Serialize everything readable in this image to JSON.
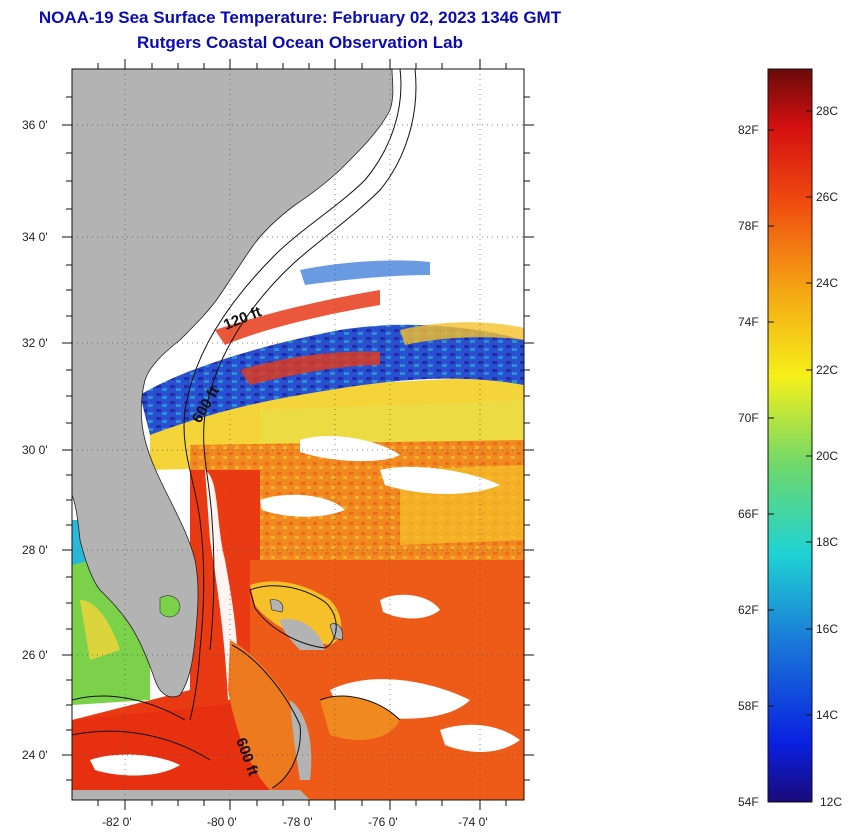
{
  "header": {
    "title": "NOAA-19 Sea Surface Temperature:  February 02, 2023 1346 GMT",
    "subtitle": "Rutgers Coastal Ocean Observation Lab"
  },
  "map": {
    "lat_labels": [
      "36 0'",
      "34 0'",
      "32 0'",
      "30 0'",
      "28 0'",
      "26 0'",
      "24 0'"
    ],
    "lon_labels": [
      "-82 0'",
      "-80 0'",
      "-78 0'",
      "-76 0'",
      "-74 0'"
    ],
    "contour_labels": [
      "120 ft",
      "600 ft",
      "600 ft"
    ],
    "colors": {
      "land": "#b3b3b3",
      "cloud": "#ffffff",
      "warm_water": "#ea3a14",
      "mid_water": "#f39a1e",
      "cool_water": "#f5d43a",
      "cold_water": "#1c3fc9"
    }
  },
  "colorbar": {
    "fahrenheit_labels": [
      "82F",
      "78F",
      "74F",
      "70F",
      "66F",
      "62F",
      "58F",
      "54F"
    ],
    "celsius_labels": [
      "28C",
      "26C",
      "24C",
      "22C",
      "20C",
      "18C",
      "16C",
      "14C",
      "12C"
    ]
  }
}
